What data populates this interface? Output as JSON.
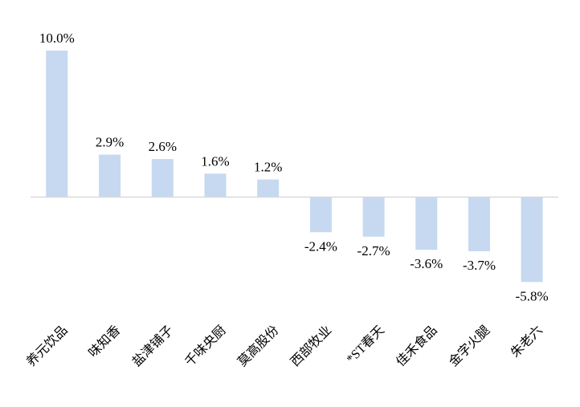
{
  "colors": {
    "bar": "#c6d9f1",
    "axis": "#d9d9d9",
    "text": "#000000",
    "background": "#ffffff"
  },
  "chart_data": {
    "type": "bar",
    "title": "",
    "xlabel": "",
    "ylabel": "",
    "categories": [
      "养元饮品",
      "味知香",
      "盐津铺子",
      "千味央厨",
      "莫高股份",
      "西部牧业",
      "*ST春天",
      "佳禾食品",
      "金字火腿",
      "朱老六"
    ],
    "values": [
      10.0,
      2.9,
      2.6,
      1.6,
      1.2,
      -2.4,
      -2.7,
      -3.6,
      -3.7,
      -5.8
    ],
    "value_labels": [
      "10.0%",
      "2.9%",
      "2.6%",
      "1.6%",
      "1.2%",
      "-2.4%",
      "-2.7%",
      "-3.6%",
      "-3.7%",
      "-5.8%"
    ],
    "ylim": [
      -6,
      10
    ],
    "grid": false,
    "legend": "none"
  }
}
